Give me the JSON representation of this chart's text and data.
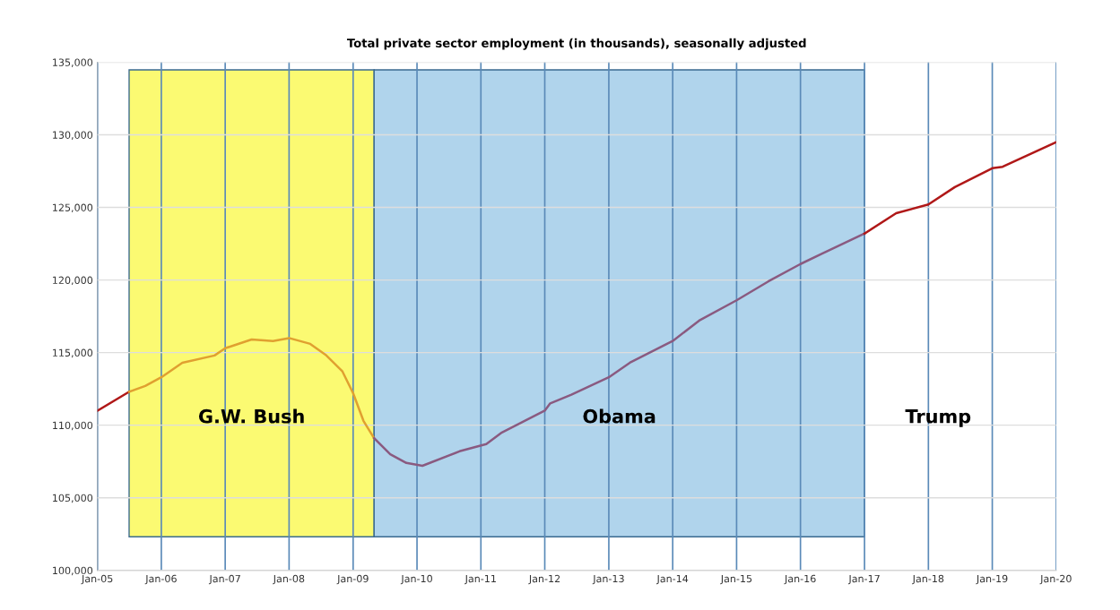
{
  "chart_data": {
    "type": "line",
    "title": "Total private sector employment (in thousands), seasonally adjusted",
    "series": [
      {
        "color": "#b01818",
        "x": [
          "2005-01",
          "2005-07"
        ],
        "values": [
          111000,
          112300
        ]
      },
      {
        "color": "#e0a030",
        "x": [
          "2005-07",
          "2005-10",
          "2006-01",
          "2006-05",
          "2006-11",
          "2007-01",
          "2007-06",
          "2007-10",
          "2008-01",
          "2008-05",
          "2008-08",
          "2008-11",
          "2009-01",
          "2009-03",
          "2009-05"
        ],
        "values": [
          112300,
          112700,
          113300,
          114300,
          114800,
          115300,
          115900,
          115800,
          116000,
          115600,
          114800,
          113700,
          112200,
          110300,
          109100
        ]
      },
      {
        "color": "#8a5a80",
        "x": [
          "2009-05",
          "2009-08",
          "2009-11",
          "2010-02",
          "2010-09",
          "2011-02",
          "2011-05",
          "2012-01",
          "2012-02",
          "2012-06",
          "2013-01",
          "2013-05",
          "2014-01",
          "2014-06",
          "2015-01",
          "2015-07",
          "2016-01",
          "2016-05",
          "2017-01"
        ],
        "values": [
          109100,
          108000,
          107400,
          107200,
          108200,
          108700,
          109500,
          111000,
          111500,
          112100,
          113300,
          114300,
          115800,
          117200,
          118600,
          119900,
          121100,
          121800,
          123200
        ]
      },
      {
        "color": "#b01818",
        "x": [
          "2017-01",
          "2017-07",
          "2018-01",
          "2018-06",
          "2019-01",
          "2019-03",
          "2020-01"
        ],
        "values": [
          123200,
          124600,
          125200,
          126400,
          127700,
          127800,
          129500
        ]
      }
    ],
    "xlim": [
      "2005-01",
      "2020-01"
    ],
    "xticks": [
      {
        "value": "2005-01",
        "label": "Jan-05"
      },
      {
        "value": "2006-01",
        "label": "Jan-06"
      },
      {
        "value": "2007-01",
        "label": "Jan-07"
      },
      {
        "value": "2008-01",
        "label": "Jan-08"
      },
      {
        "value": "2009-01",
        "label": "Jan-09"
      },
      {
        "value": "2010-01",
        "label": "Jan-10"
      },
      {
        "value": "2011-01",
        "label": "Jan-11"
      },
      {
        "value": "2012-01",
        "label": "Jan-12"
      },
      {
        "value": "2013-01",
        "label": "Jan-13"
      },
      {
        "value": "2014-01",
        "label": "Jan-14"
      },
      {
        "value": "2015-01",
        "label": "Jan-15"
      },
      {
        "value": "2016-01",
        "label": "Jan-16"
      },
      {
        "value": "2017-01",
        "label": "Jan-17"
      },
      {
        "value": "2018-01",
        "label": "Jan-18"
      },
      {
        "value": "2019-01",
        "label": "Jan-19"
      },
      {
        "value": "2020-01",
        "label": "Jan-20"
      }
    ],
    "ylim": [
      100000,
      135000
    ],
    "yticks": [
      {
        "value": 100000,
        "label": "100,000"
      },
      {
        "value": 105000,
        "label": "105,000"
      },
      {
        "value": 110000,
        "label": "110,000"
      },
      {
        "value": 115000,
        "label": "115,000"
      },
      {
        "value": 120000,
        "label": "120,000"
      },
      {
        "value": 125000,
        "label": "125,000"
      },
      {
        "value": 130000,
        "label": "130,000"
      },
      {
        "value": 135000,
        "label": "135,000"
      }
    ],
    "bands": [
      {
        "axis": "x",
        "from": "2005-07",
        "to": "2009-05",
        "label": "G.W. Bush",
        "color": "#fbfa72"
      },
      {
        "axis": "x",
        "from": "2009-05",
        "to": "2017-01",
        "label": "Obama",
        "color": "#b0d4ec"
      }
    ],
    "annotations": [
      "Trump"
    ],
    "grid": true,
    "line_style": "solid",
    "marker": "none"
  }
}
